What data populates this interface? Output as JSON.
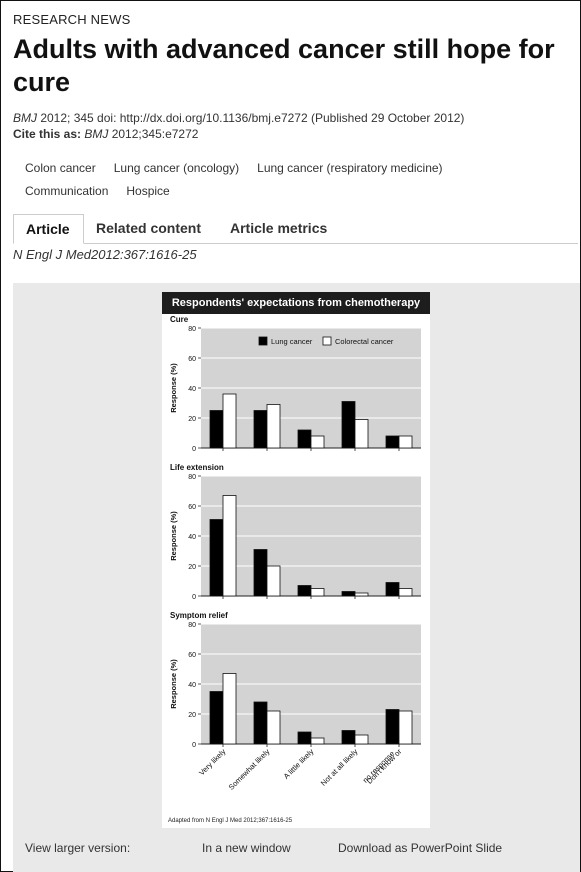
{
  "section_label": "RESEARCH NEWS",
  "title": "Adults with advanced cancer still hope for cure",
  "meta": {
    "journal": "BMJ",
    "line1_rest": " 2012; 345 doi: http://dx.doi.org/10.1136/bmj.e7272 (Published 29 October 2012)",
    "cite_label": "Cite this as: ",
    "cite_journal": "BMJ",
    "cite_rest": " 2012;345:e7272"
  },
  "keywords": [
    "Colon cancer",
    "Lung cancer (oncology)",
    "Lung cancer (respiratory medicine)",
    "Communication",
    "Hospice"
  ],
  "tabs": [
    {
      "label": "Article",
      "active": true
    },
    {
      "label": "Related content",
      "active": false
    },
    {
      "label": "Article metrics",
      "active": false
    }
  ],
  "citation": "N Engl J Med2012:367:1616-25",
  "view_row": {
    "label": "View larger version:",
    "new_window": "In a new window",
    "download": "Download as PowerPoint Slide"
  },
  "chart_data": {
    "type": "bar",
    "title": "Respondents' expectations from chemotherapy",
    "ylabel": "Response (%)",
    "ylim": [
      0,
      80
    ],
    "yticks": [
      0,
      20,
      40,
      60,
      80
    ],
    "categories": [
      "Very likely",
      "Somewhat likely",
      "A little likely",
      "Not at all likely",
      "Don't know or no response"
    ],
    "legend": [
      "Lung cancer",
      "Colorectal cancer"
    ],
    "legend_position": "top-right",
    "colors": {
      "lung": "#000000",
      "colorectal": "#ffffff",
      "plot_bg": "#d3d3d3"
    },
    "source": "Adapted from N Engl J Med 2012;367:1616-25",
    "panels": [
      {
        "name": "Cure",
        "series": [
          {
            "name": "Lung cancer",
            "values": [
              25,
              25,
              12,
              31,
              8
            ]
          },
          {
            "name": "Colorectal cancer",
            "values": [
              36,
              29,
              8,
              19,
              8
            ]
          }
        ]
      },
      {
        "name": "Life extension",
        "series": [
          {
            "name": "Lung cancer",
            "values": [
              51,
              31,
              7,
              3,
              9
            ]
          },
          {
            "name": "Colorectal cancer",
            "values": [
              67,
              20,
              5,
              2,
              5
            ]
          }
        ]
      },
      {
        "name": "Symptom relief",
        "series": [
          {
            "name": "Lung cancer",
            "values": [
              35,
              28,
              8,
              9,
              23
            ]
          },
          {
            "name": "Colorectal cancer",
            "values": [
              47,
              22,
              4,
              6,
              22
            ]
          }
        ]
      }
    ]
  }
}
